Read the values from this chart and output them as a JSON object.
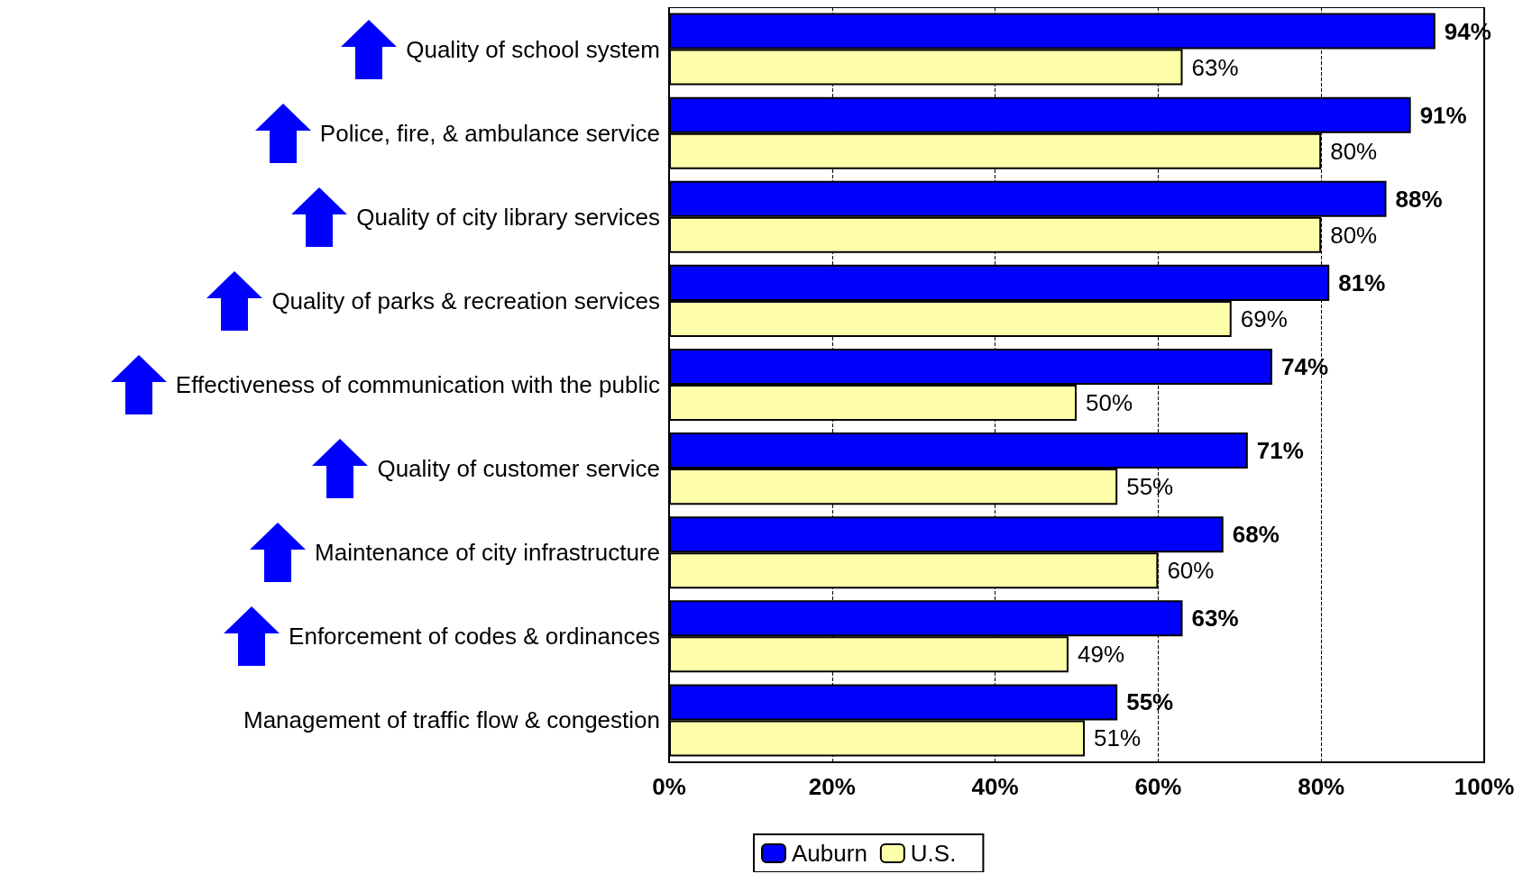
{
  "chart_data": {
    "type": "bar",
    "orientation": "horizontal",
    "categories": [
      "Quality of school system",
      "Police, fire, & ambulance service",
      "Quality of city library services",
      "Quality of parks & recreation services",
      "Effectiveness of communication with the public",
      "Quality of customer service",
      "Maintenance of city infrastructure",
      "Enforcement of codes & ordinances",
      "Management of traffic flow & congestion"
    ],
    "series": [
      {
        "name": "Auburn",
        "color": "#0000ff",
        "values": [
          94,
          91,
          88,
          81,
          74,
          71,
          68,
          63,
          55
        ],
        "value_labels": [
          "94%",
          "91%",
          "88%",
          "81%",
          "74%",
          "71%",
          "68%",
          "63%",
          "55%"
        ]
      },
      {
        "name": "U.S.",
        "color": "#ffffaa",
        "values": [
          63,
          80,
          80,
          69,
          50,
          55,
          60,
          49,
          51
        ],
        "value_labels": [
          "63%",
          "80%",
          "80%",
          "69%",
          "50%",
          "55%",
          "60%",
          "49%",
          "51%"
        ]
      }
    ],
    "xlim": [
      0,
      100
    ],
    "xticks": [
      {
        "value": 0,
        "label": "0%"
      },
      {
        "value": 20,
        "label": "20%"
      },
      {
        "value": 40,
        "label": "40%"
      },
      {
        "value": 60,
        "label": "60%"
      },
      {
        "value": 80,
        "label": "80%"
      },
      {
        "value": 100,
        "label": "100%"
      }
    ],
    "grid": "x",
    "legend": "bottom"
  }
}
